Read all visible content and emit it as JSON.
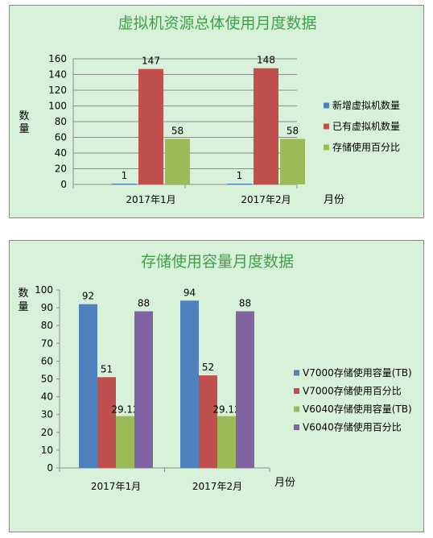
{
  "chart_data": [
    {
      "type": "bar",
      "title": "虚拟机资源总体使用月度数据",
      "ylabel": "数量",
      "xlabel": "月份",
      "ylim": [
        0,
        160
      ],
      "yticks": [
        "0",
        "20",
        "40",
        "60",
        "80",
        "100",
        "120",
        "140",
        "160"
      ],
      "categories": [
        "2017年1月",
        "2017年2月"
      ],
      "grid": true,
      "legend_position": "right",
      "series": [
        {
          "name": "新增虚拟机数量",
          "values": [
            1,
            1
          ],
          "color": "#4f81bd"
        },
        {
          "name": "已有虚拟机数量",
          "values": [
            147,
            148
          ],
          "color": "#c0504d"
        },
        {
          "name": "存储使用百分比",
          "values": [
            58,
            58
          ],
          "color": "#9bbb59"
        }
      ]
    },
    {
      "type": "bar",
      "title": "存储使用容量月度数据",
      "ylabel": "数量",
      "xlabel": "月份",
      "ylim": [
        0,
        100
      ],
      "yticks": [
        "0",
        "10",
        "20",
        "30",
        "40",
        "50",
        "60",
        "70",
        "80",
        "90",
        "100"
      ],
      "categories": [
        "2017年1月",
        "2017年2月"
      ],
      "grid": false,
      "legend_position": "right",
      "series": [
        {
          "name": "V7000存储使用容量(TB)",
          "values": [
            92,
            94
          ],
          "color": "#4f81bd"
        },
        {
          "name": "V7000存储使用百分比",
          "values": [
            51,
            52
          ],
          "color": "#c0504d"
        },
        {
          "name": "V6040存储使用容量(TB)",
          "values": [
            29.12,
            29.12
          ],
          "color": "#9bbb59"
        },
        {
          "name": "V6040存储使用百分比",
          "values": [
            88,
            88
          ],
          "color": "#8064a2"
        }
      ]
    }
  ]
}
